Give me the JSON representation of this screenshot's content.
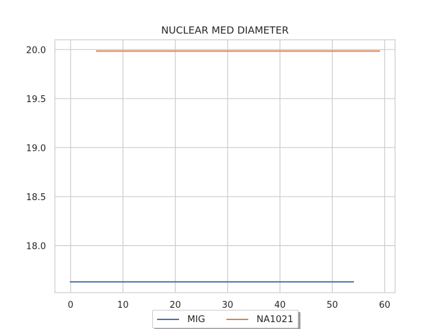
{
  "chart_data": {
    "type": "line",
    "title": "NUCLEAR MED DIAMETER",
    "xlabel": "",
    "ylabel": "",
    "xlim": [
      -3,
      62
    ],
    "ylim": [
      17.52,
      20.1
    ],
    "xticks": [
      0,
      10,
      20,
      30,
      40,
      50,
      60
    ],
    "yticks": [
      18.0,
      18.5,
      19.0,
      19.5,
      20.0
    ],
    "grid": true,
    "legend_position": "bottom-center",
    "series": [
      {
        "name": "MIG",
        "color": "#4c72b0",
        "x": [
          0,
          54
        ],
        "values": [
          17.63,
          17.63
        ]
      },
      {
        "name": "NA1021",
        "color": "#dd8452",
        "x": [
          5,
          59
        ],
        "values": [
          19.985,
          19.985
        ]
      }
    ]
  }
}
